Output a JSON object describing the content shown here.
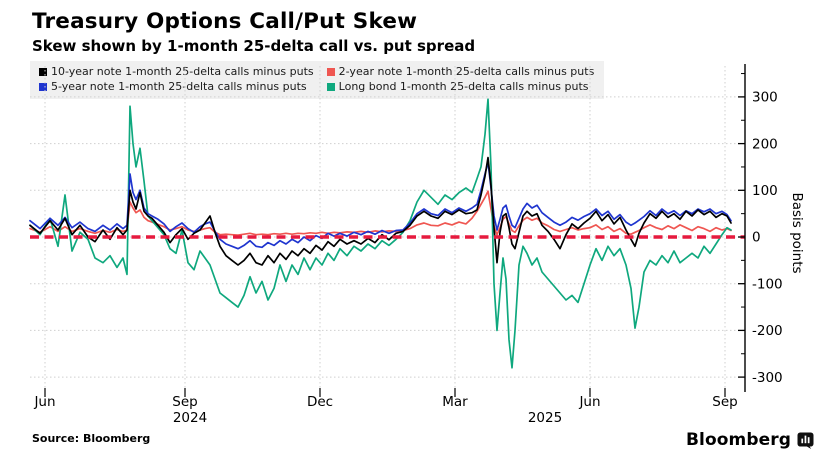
{
  "header": {
    "title": "Treasury Options Call/Put Skew",
    "subtitle": "Skew shown by 1-month 25-delta call vs. put spread"
  },
  "footer": {
    "source": "Source: Bloomberg",
    "brand": "Bloomberg",
    "brand_icon": "bloomberg-logo-icon"
  },
  "colors": {
    "background": "#ffffff",
    "grid": "#cfcfcf",
    "axis": "#000000",
    "legend_bg": "#f0f0f0",
    "zero_line": "#e61a3e"
  },
  "chart_data": {
    "type": "line",
    "title": "Treasury Options Call/Put Skew",
    "subtitle": "Skew shown by 1-month 25-delta call vs. put spread",
    "ylabel": "Basis points",
    "ylim": [
      -350,
      350
    ],
    "yticks": [
      300,
      200,
      100,
      0,
      -100,
      -200,
      -300
    ],
    "y_minor_ticks": [
      350,
      250,
      150,
      50,
      -50,
      -150,
      -250
    ],
    "grid": true,
    "legend_position": "top-left",
    "zero_line": {
      "value": 0,
      "style": "dashed",
      "color": "#e61a3e"
    },
    "x_axis": {
      "unit": "date",
      "ticks": [
        {
          "label": "Jun",
          "t": 45
        },
        {
          "label": "Sep",
          "t": 185
        },
        {
          "label": "Dec",
          "t": 320
        },
        {
          "label": "Mar",
          "t": 455
        },
        {
          "label": "Jun",
          "t": 590
        },
        {
          "label": "Sep",
          "t": 725
        }
      ],
      "year_labels": [
        {
          "label": "2024",
          "t": 190
        },
        {
          "label": "2025",
          "t": 545
        }
      ]
    },
    "draw_order": [
      1,
      3,
      2,
      0
    ],
    "x": [
      30,
      40,
      50,
      58,
      65,
      72,
      80,
      88,
      95,
      103,
      110,
      117,
      123,
      127,
      130,
      133,
      136,
      140,
      144,
      148,
      152,
      158,
      164,
      170,
      176,
      182,
      188,
      194,
      200,
      205,
      210,
      215,
      220,
      226,
      232,
      238,
      244,
      250,
      256,
      262,
      268,
      274,
      280,
      286,
      292,
      298,
      304,
      310,
      316,
      322,
      328,
      334,
      340,
      347,
      354,
      361,
      368,
      375,
      382,
      389,
      396,
      403,
      410,
      417,
      424,
      431,
      438,
      445,
      452,
      459,
      466,
      472,
      477,
      481,
      485,
      488,
      491,
      494,
      497,
      500,
      503,
      506,
      509,
      512,
      515,
      519,
      523,
      527,
      532,
      537,
      542,
      548,
      554,
      560,
      566,
      572,
      578,
      584,
      590,
      596,
      602,
      608,
      614,
      620,
      626,
      631,
      635,
      639,
      644,
      650,
      656,
      662,
      668,
      674,
      680,
      686,
      692,
      698,
      704,
      710,
      716,
      722,
      727,
      731
    ],
    "series": [
      {
        "name": "10-year note 1-month 25-delta calls minus puts",
        "color": "#000000",
        "values": [
          25,
          8,
          35,
          15,
          40,
          5,
          25,
          0,
          -10,
          15,
          -5,
          20,
          5,
          15,
          100,
          75,
          60,
          95,
          55,
          45,
          40,
          25,
          10,
          -12,
          5,
          18,
          -5,
          8,
          15,
          30,
          45,
          10,
          -20,
          -40,
          -50,
          -60,
          -50,
          -35,
          -55,
          -60,
          -40,
          -55,
          -35,
          -48,
          -30,
          -40,
          -25,
          -35,
          -18,
          -28,
          -10,
          -20,
          -5,
          -15,
          -8,
          -15,
          -3,
          -12,
          5,
          -6,
          8,
          12,
          25,
          45,
          55,
          45,
          40,
          55,
          48,
          58,
          50,
          52,
          58,
          90,
          130,
          170,
          110,
          20,
          -55,
          10,
          45,
          50,
          20,
          -15,
          -25,
          10,
          45,
          55,
          45,
          50,
          25,
          12,
          -5,
          -25,
          5,
          28,
          18,
          30,
          40,
          55,
          35,
          48,
          28,
          42,
          15,
          -5,
          -20,
          8,
          30,
          50,
          40,
          55,
          42,
          50,
          38,
          55,
          45,
          58,
          48,
          55,
          42,
          50,
          45,
          30
        ]
      },
      {
        "name": "2-year note 1-month 25-delta calls minus puts",
        "color": "#ef5651",
        "values": [
          18,
          10,
          22,
          12,
          22,
          12,
          18,
          12,
          8,
          14,
          10,
          16,
          12,
          15,
          75,
          62,
          52,
          58,
          42,
          35,
          32,
          27,
          22,
          15,
          18,
          22,
          15,
          12,
          15,
          18,
          20,
          10,
          5,
          6,
          5,
          4,
          6,
          8,
          5,
          6,
          5,
          7,
          6,
          8,
          6,
          8,
          7,
          9,
          8,
          10,
          8,
          10,
          9,
          11,
          10,
          12,
          10,
          13,
          11,
          13,
          12,
          14,
          18,
          26,
          30,
          25,
          24,
          30,
          26,
          32,
          28,
          40,
          55,
          70,
          85,
          98,
          60,
          22,
          5,
          20,
          38,
          44,
          28,
          14,
          10,
          24,
          36,
          42,
          36,
          40,
          30,
          24,
          16,
          12,
          16,
          20,
          15,
          18,
          20,
          26,
          16,
          22,
          12,
          18,
          8,
          6,
          10,
          14,
          20,
          26,
          20,
          16,
          24,
          18,
          26,
          20,
          14,
          22,
          18,
          12,
          20,
          15,
          18,
          14
        ]
      },
      {
        "name": "5-year note 1-month 25-delta calls minus puts",
        "color": "#1f35cf",
        "values": [
          35,
          18,
          40,
          25,
          42,
          20,
          32,
          18,
          12,
          25,
          15,
          28,
          18,
          25,
          135,
          95,
          80,
          100,
          62,
          50,
          45,
          38,
          28,
          12,
          22,
          30,
          18,
          10,
          22,
          28,
          32,
          12,
          -5,
          -15,
          -20,
          -25,
          -18,
          -8,
          -20,
          -22,
          -12,
          -18,
          -8,
          -15,
          -5,
          -12,
          0,
          -8,
          3,
          -3,
          8,
          2,
          8,
          2,
          10,
          5,
          12,
          6,
          14,
          8,
          14,
          15,
          30,
          50,
          60,
          50,
          46,
          60,
          52,
          62,
          55,
          62,
          70,
          100,
          135,
          160,
          105,
          45,
          15,
          38,
          62,
          68,
          45,
          25,
          20,
          40,
          60,
          72,
          62,
          68,
          52,
          42,
          32,
          25,
          32,
          42,
          36,
          44,
          50,
          60,
          46,
          55,
          38,
          48,
          32,
          25,
          30,
          36,
          44,
          56,
          46,
          60,
          50,
          56,
          46,
          56,
          50,
          60,
          54,
          60,
          50,
          55,
          48,
          35
        ]
      },
      {
        "name": "Long bond 1-month 25-delta calls minus puts",
        "color": "#0fa87e",
        "values": [
          25,
          5,
          40,
          -20,
          90,
          -30,
          10,
          -5,
          -45,
          -55,
          -40,
          -65,
          -45,
          -80,
          280,
          200,
          150,
          190,
          120,
          45,
          35,
          20,
          5,
          -25,
          -35,
          15,
          -55,
          -70,
          -30,
          -45,
          -60,
          -90,
          -120,
          -130,
          -140,
          -150,
          -125,
          -85,
          -120,
          -95,
          -135,
          -110,
          -60,
          -95,
          -60,
          -80,
          -45,
          -70,
          -45,
          -60,
          -35,
          -50,
          -25,
          -40,
          -20,
          -30,
          -15,
          -25,
          -8,
          -18,
          -5,
          10,
          35,
          75,
          100,
          85,
          70,
          90,
          80,
          95,
          105,
          95,
          125,
          150,
          220,
          295,
          150,
          -100,
          -200,
          -120,
          -45,
          -90,
          -220,
          -280,
          -200,
          -60,
          -20,
          -35,
          -60,
          -45,
          -75,
          -90,
          -105,
          -120,
          -135,
          -125,
          -140,
          -100,
          -60,
          -25,
          -50,
          -20,
          -40,
          -25,
          -60,
          -110,
          -195,
          -150,
          -75,
          -50,
          -60,
          -40,
          -55,
          -30,
          -55,
          -45,
          -35,
          -45,
          -20,
          -35,
          -15,
          5,
          20,
          15
        ]
      }
    ]
  }
}
